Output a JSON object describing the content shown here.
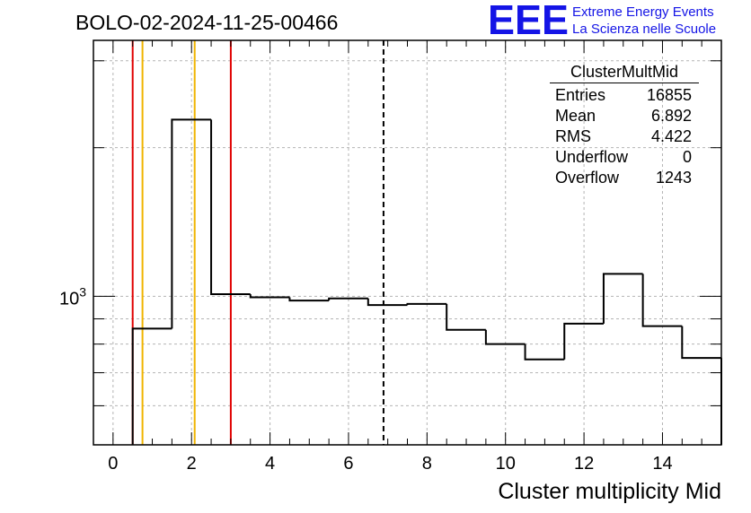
{
  "title": "BOLO-02-2024-11-25-00466",
  "logo": {
    "mark": "EEE",
    "line1": "Extreme Energy Events",
    "line2": "La Scienza nelle Scuole",
    "color": "#1414e6"
  },
  "stats": {
    "name": "ClusterMultMid",
    "rows": [
      {
        "label": "Entries",
        "value": "16855"
      },
      {
        "label": "Mean",
        "value": "6.892"
      },
      {
        "label": "RMS",
        "value": "4.422"
      },
      {
        "label": "Underflow",
        "value": "0"
      },
      {
        "label": "Overflow",
        "value": "1243"
      }
    ]
  },
  "chart_data": {
    "type": "histogram",
    "xlabel": "Cluster multiplicity Mid",
    "ylabel": "",
    "xlim": [
      -0.5,
      15.5
    ],
    "ylim": [
      500,
      3300
    ],
    "yscale": "log",
    "grid": true,
    "bins": {
      "edges": [
        0.5,
        1.5,
        2.5,
        3.5,
        4.5,
        5.5,
        6.5,
        7.5,
        8.5,
        9.5,
        10.5,
        11.5,
        12.5,
        13.5,
        14.5,
        15.5
      ],
      "values": [
        860,
        2280,
        1010,
        995,
        980,
        990,
        960,
        965,
        855,
        800,
        745,
        880,
        1110,
        870,
        750
      ]
    },
    "xticks": [
      "0",
      "2",
      "4",
      "6",
      "8",
      "10",
      "12",
      "14"
    ],
    "yticks": [
      {
        "value": 1000,
        "label": "10",
        "exp": "3"
      }
    ],
    "vlines": [
      {
        "x": 0.5,
        "color": "#e00000",
        "style": "solid"
      },
      {
        "x": 0.75,
        "color": "#f0b400",
        "style": "solid"
      },
      {
        "x": 2.08,
        "color": "#f0b400",
        "style": "solid"
      },
      {
        "x": 3.0,
        "color": "#e00000",
        "style": "solid"
      },
      {
        "x": 6.892,
        "color": "#000000",
        "style": "dashed"
      }
    ]
  }
}
